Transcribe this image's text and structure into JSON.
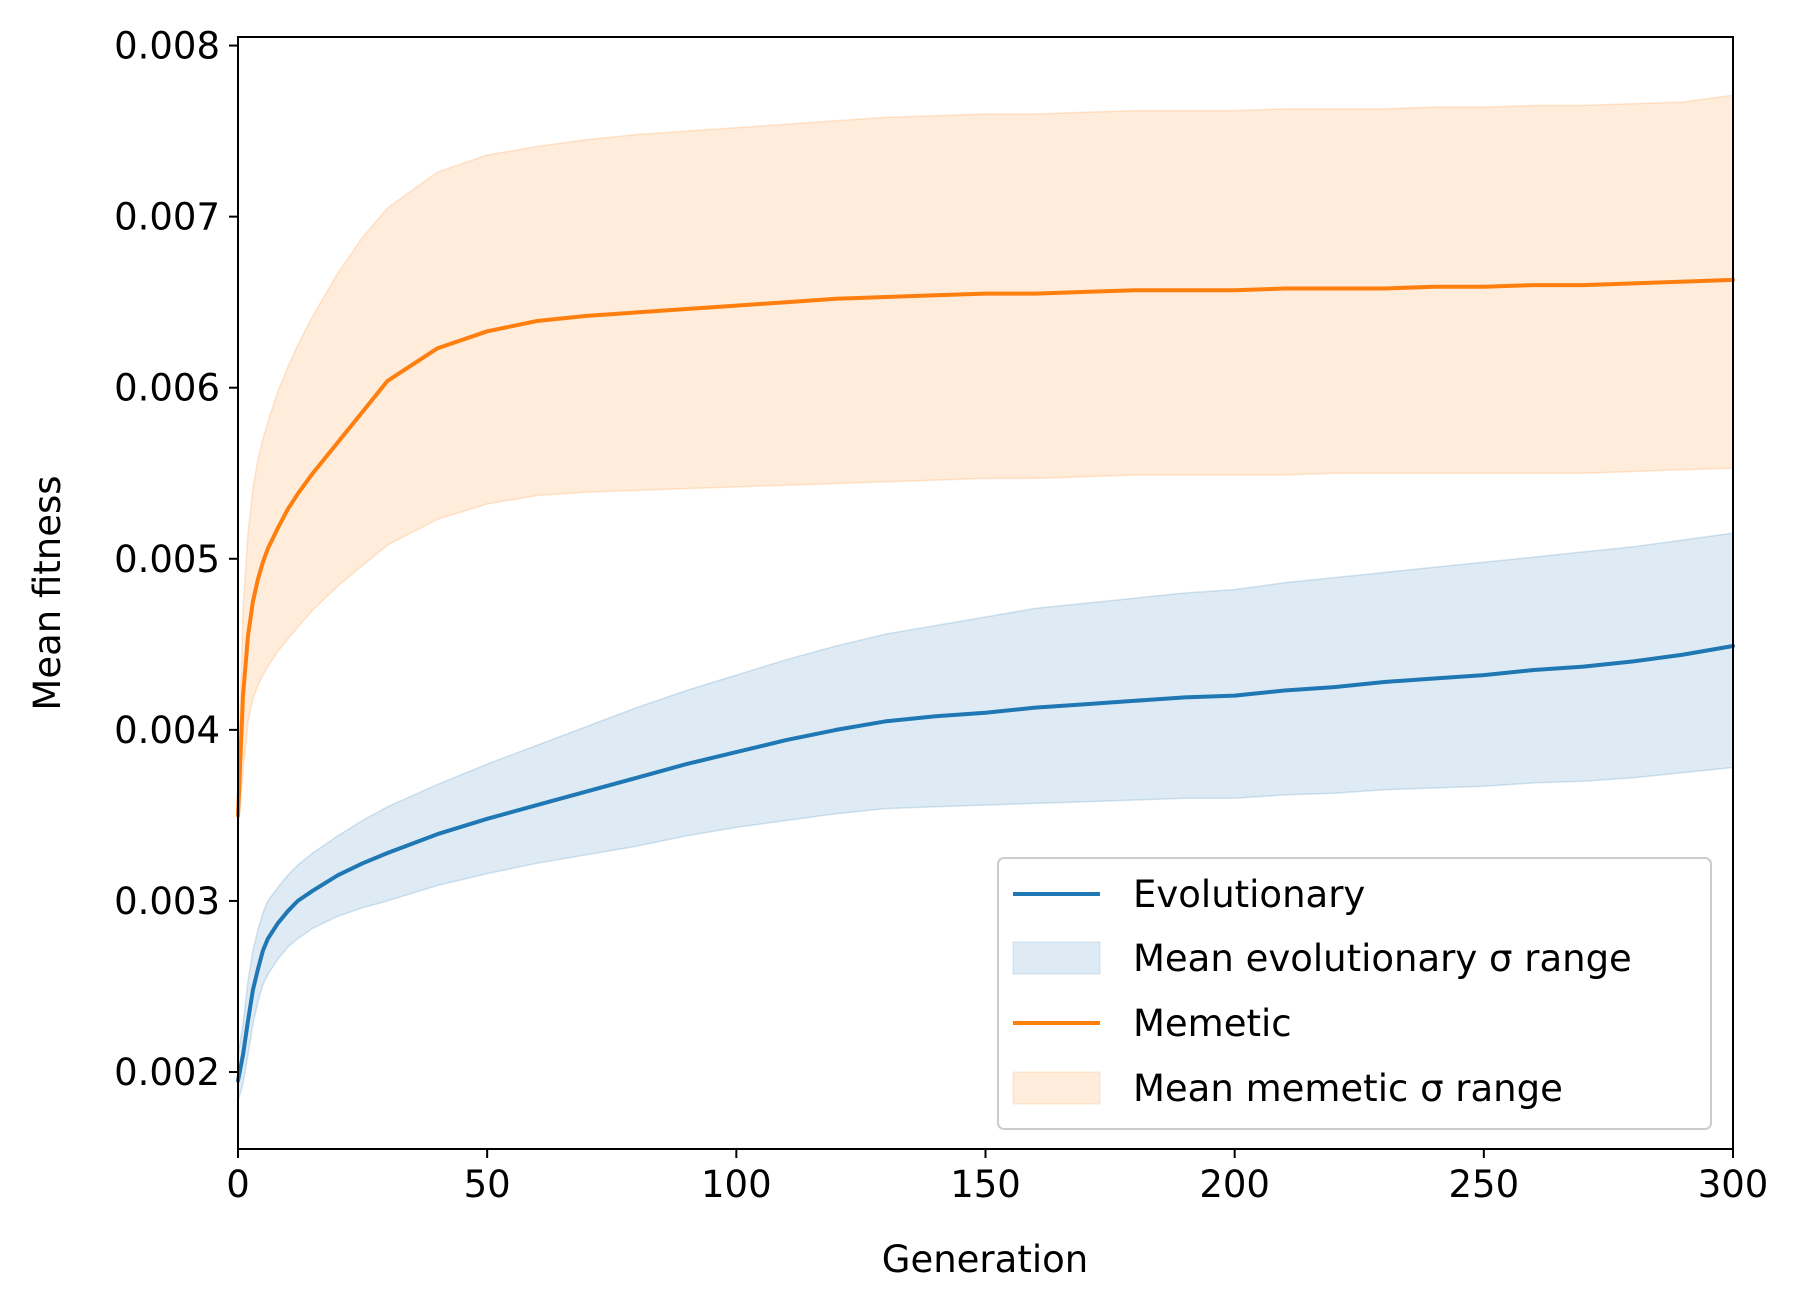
{
  "chart_data": {
    "type": "line",
    "title": "",
    "xlabel": "Generation",
    "ylabel": "Mean fitness",
    "xlim": [
      0,
      300
    ],
    "ylim": [
      0.00155,
      0.00805
    ],
    "xticks": [
      0,
      50,
      100,
      150,
      200,
      250,
      300
    ],
    "xtick_labels": [
      "0",
      "50",
      "100",
      "150",
      "200",
      "250",
      "300"
    ],
    "yticks": [
      0.002,
      0.003,
      0.004,
      0.005,
      0.006,
      0.007,
      0.008
    ],
    "ytick_labels": [
      "0.002",
      "0.003",
      "0.004",
      "0.005",
      "0.006",
      "0.007",
      "0.008"
    ],
    "grid": false,
    "legend_position": "lower-right",
    "legend": [
      {
        "label": "Evolutionary",
        "kind": "line",
        "color": "#1f77b4"
      },
      {
        "label": "Mean evolutionary σ range",
        "kind": "band",
        "color": "#1f77b4"
      },
      {
        "label": "Memetic",
        "kind": "line",
        "color": "#ff7f0e"
      },
      {
        "label": "Mean memetic σ range",
        "kind": "band",
        "color": "#ff7f0e"
      }
    ],
    "series": [
      {
        "name": "Evolutionary",
        "color": "#1f77b4",
        "x": [
          0,
          1,
          2,
          3,
          4,
          5,
          6,
          8,
          10,
          12,
          15,
          20,
          25,
          30,
          40,
          50,
          60,
          70,
          80,
          90,
          100,
          110,
          120,
          130,
          140,
          150,
          160,
          170,
          180,
          190,
          200,
          210,
          220,
          230,
          240,
          250,
          260,
          270,
          280,
          290,
          300
        ],
        "mean": [
          0.00195,
          0.0021,
          0.0023,
          0.00248,
          0.0026,
          0.00271,
          0.00278,
          0.00287,
          0.00294,
          0.003,
          0.00306,
          0.00315,
          0.00322,
          0.00328,
          0.00339,
          0.00348,
          0.00356,
          0.00364,
          0.00372,
          0.0038,
          0.00387,
          0.00394,
          0.004,
          0.00405,
          0.00408,
          0.0041,
          0.00413,
          0.00415,
          0.00417,
          0.00419,
          0.0042,
          0.00423,
          0.00425,
          0.00428,
          0.0043,
          0.00432,
          0.00435,
          0.00437,
          0.0044,
          0.00444,
          0.00449
        ],
        "upper": [
          0.0021,
          0.00228,
          0.00253,
          0.00271,
          0.00283,
          0.00293,
          0.003,
          0.00308,
          0.00315,
          0.00321,
          0.00328,
          0.00338,
          0.00347,
          0.00355,
          0.00368,
          0.0038,
          0.00391,
          0.00402,
          0.00413,
          0.00423,
          0.00432,
          0.00441,
          0.00449,
          0.00456,
          0.00461,
          0.00466,
          0.00471,
          0.00474,
          0.00477,
          0.0048,
          0.00482,
          0.00486,
          0.00489,
          0.00492,
          0.00495,
          0.00498,
          0.00501,
          0.00504,
          0.00507,
          0.00511,
          0.00515
        ],
        "lower": [
          0.00183,
          0.00193,
          0.0021,
          0.00228,
          0.00241,
          0.00251,
          0.00257,
          0.00266,
          0.00273,
          0.00278,
          0.00284,
          0.00291,
          0.00296,
          0.003,
          0.00309,
          0.00316,
          0.00322,
          0.00327,
          0.00332,
          0.00338,
          0.00343,
          0.00347,
          0.00351,
          0.00354,
          0.00355,
          0.00356,
          0.00357,
          0.00358,
          0.00359,
          0.0036,
          0.0036,
          0.00362,
          0.00363,
          0.00365,
          0.00366,
          0.00367,
          0.00369,
          0.0037,
          0.00372,
          0.00375,
          0.00378
        ]
      },
      {
        "name": "Memetic",
        "color": "#ff7f0e",
        "x": [
          0,
          1,
          2,
          3,
          4,
          5,
          6,
          8,
          10,
          12,
          15,
          20,
          25,
          30,
          40,
          50,
          60,
          70,
          80,
          90,
          100,
          110,
          120,
          130,
          140,
          150,
          160,
          170,
          180,
          190,
          200,
          210,
          220,
          230,
          240,
          250,
          260,
          270,
          280,
          290,
          300
        ],
        "mean": [
          0.0035,
          0.0042,
          0.00455,
          0.00475,
          0.00488,
          0.00498,
          0.00506,
          0.00518,
          0.00529,
          0.00538,
          0.0055,
          0.00568,
          0.00586,
          0.00604,
          0.00623,
          0.00633,
          0.00639,
          0.00642,
          0.00644,
          0.00646,
          0.00648,
          0.0065,
          0.00652,
          0.00653,
          0.00654,
          0.00655,
          0.00655,
          0.00656,
          0.00657,
          0.00657,
          0.00657,
          0.00658,
          0.00658,
          0.00658,
          0.00659,
          0.00659,
          0.0066,
          0.0066,
          0.00661,
          0.00662,
          0.00663
        ],
        "upper": [
          0.0037,
          0.0047,
          0.00515,
          0.00541,
          0.00558,
          0.0057,
          0.0058,
          0.00598,
          0.00612,
          0.00625,
          0.00642,
          0.00667,
          0.00688,
          0.00705,
          0.00726,
          0.00736,
          0.00741,
          0.00745,
          0.00748,
          0.0075,
          0.00752,
          0.00754,
          0.00756,
          0.00758,
          0.00759,
          0.0076,
          0.0076,
          0.00761,
          0.00762,
          0.00762,
          0.00762,
          0.00763,
          0.00763,
          0.00763,
          0.00764,
          0.00764,
          0.00765,
          0.00765,
          0.00766,
          0.00767,
          0.00771
        ],
        "lower": [
          0.0034,
          0.00375,
          0.00405,
          0.00418,
          0.00426,
          0.00432,
          0.00437,
          0.00446,
          0.00453,
          0.0046,
          0.0047,
          0.00484,
          0.00496,
          0.00508,
          0.00523,
          0.00532,
          0.00537,
          0.00539,
          0.0054,
          0.00541,
          0.00542,
          0.00543,
          0.00544,
          0.00545,
          0.00546,
          0.00547,
          0.00547,
          0.00548,
          0.00549,
          0.00549,
          0.00549,
          0.00549,
          0.0055,
          0.0055,
          0.0055,
          0.0055,
          0.0055,
          0.0055,
          0.00551,
          0.00552,
          0.00553
        ]
      }
    ]
  }
}
